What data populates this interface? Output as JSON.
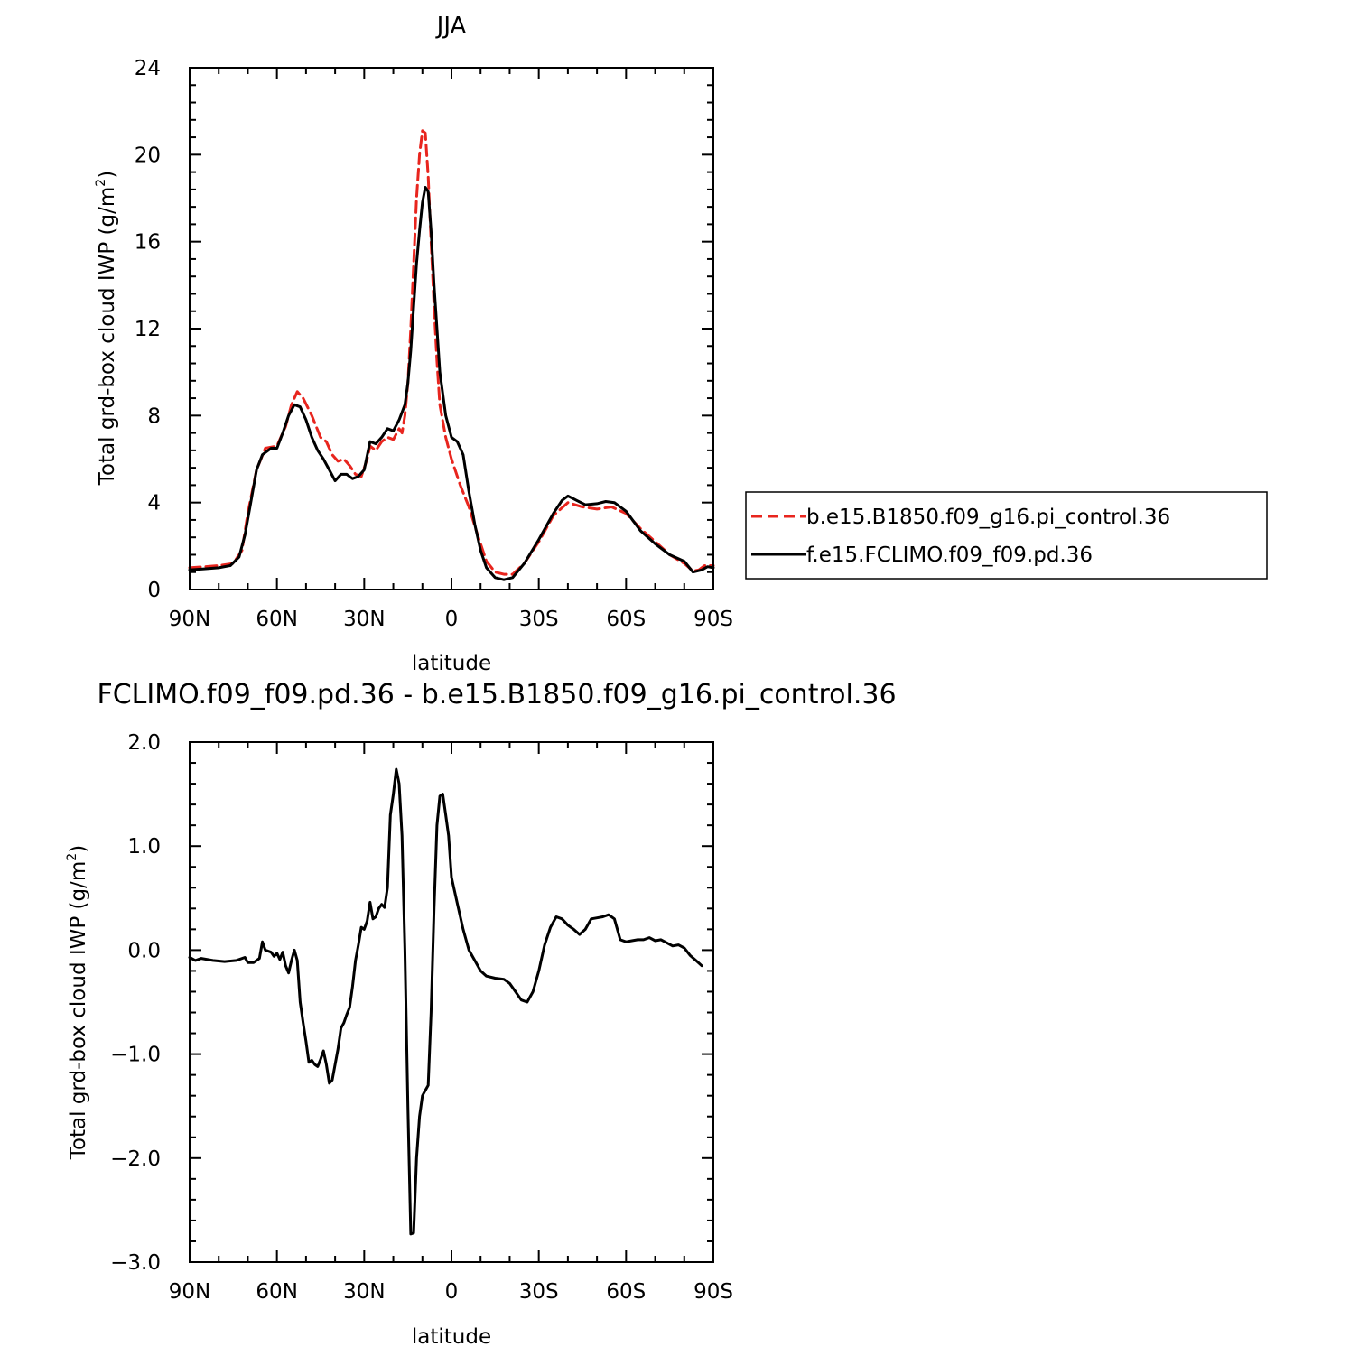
{
  "chart_data": [
    {
      "type": "line",
      "title": "JJA",
      "xlabel": "latitude",
      "ylabel_main": "Total grd-box cloud IWP (g/m",
      "ylabel_sup": "2",
      "ylabel_close": ")",
      "xlim": [
        90,
        -90
      ],
      "ylim": [
        0,
        24
      ],
      "x_ticks": [
        90,
        60,
        30,
        0,
        -30,
        -60,
        -90
      ],
      "x_tick_labels": [
        "90N",
        "60N",
        "30N",
        "0",
        "30S",
        "60S",
        "90S"
      ],
      "y_ticks": [
        0,
        4,
        8,
        12,
        16,
        20,
        24
      ],
      "y_tick_labels": [
        "0",
        "4",
        "8",
        "12",
        "16",
        "20",
        "24"
      ],
      "legend_position": "right",
      "series": [
        {
          "name": "b.e15.B1850.f09_g16.pi_control.36",
          "color": "#e8251e",
          "dash": "dashed",
          "points": [
            [
              90,
              1.0
            ],
            [
              85,
              1.05
            ],
            [
              80,
              1.1
            ],
            [
              75,
              1.2
            ],
            [
              72,
              1.8
            ],
            [
              70,
              3.5
            ],
            [
              67,
              5.5
            ],
            [
              64,
              6.5
            ],
            [
              60,
              6.6
            ],
            [
              57,
              7.5
            ],
            [
              55,
              8.5
            ],
            [
              53,
              9.1
            ],
            [
              51,
              8.8
            ],
            [
              48,
              8.0
            ],
            [
              45,
              7.0
            ],
            [
              43,
              6.8
            ],
            [
              41,
              6.2
            ],
            [
              39,
              5.9
            ],
            [
              37,
              6.0
            ],
            [
              35,
              5.7
            ],
            [
              33,
              5.3
            ],
            [
              31,
              5.2
            ],
            [
              29,
              6.0
            ],
            [
              28,
              6.6
            ],
            [
              26,
              6.4
            ],
            [
              24,
              6.8
            ],
            [
              22,
              7.0
            ],
            [
              20,
              6.9
            ],
            [
              18,
              7.4
            ],
            [
              17,
              7.2
            ],
            [
              16,
              8.0
            ],
            [
              15,
              9.5
            ],
            [
              14,
              12.0
            ],
            [
              13,
              15.0
            ],
            [
              12,
              18.0
            ],
            [
              11,
              20.0
            ],
            [
              10,
              21.1
            ],
            [
              9,
              21.0
            ],
            [
              8,
              19.0
            ],
            [
              7,
              16.0
            ],
            [
              6,
              13.0
            ],
            [
              5,
              10.5
            ],
            [
              4,
              8.5
            ],
            [
              2,
              7.0
            ],
            [
              0,
              6.0
            ],
            [
              -3,
              4.8
            ],
            [
              -6,
              3.8
            ],
            [
              -9,
              2.5
            ],
            [
              -12,
              1.3
            ],
            [
              -15,
              0.8
            ],
            [
              -18,
              0.7
            ],
            [
              -21,
              0.7
            ],
            [
              -25,
              1.2
            ],
            [
              -30,
              2.2
            ],
            [
              -35,
              3.4
            ],
            [
              -40,
              4.0
            ],
            [
              -45,
              3.8
            ],
            [
              -50,
              3.7
            ],
            [
              -55,
              3.8
            ],
            [
              -60,
              3.5
            ],
            [
              -65,
              2.8
            ],
            [
              -70,
              2.2
            ],
            [
              -75,
              1.6
            ],
            [
              -80,
              1.2
            ],
            [
              -83,
              0.85
            ],
            [
              -85,
              0.9
            ],
            [
              -87,
              1.1
            ],
            [
              -90,
              1.1
            ]
          ]
        },
        {
          "name": "f.e15.FCLIMO.f09_f09.pd.36",
          "color": "#000000",
          "dash": "solid",
          "points": [
            [
              90,
              0.9
            ],
            [
              85,
              0.95
            ],
            [
              80,
              1.0
            ],
            [
              76,
              1.1
            ],
            [
              73,
              1.5
            ],
            [
              71,
              2.5
            ],
            [
              69,
              4.0
            ],
            [
              67,
              5.5
            ],
            [
              65,
              6.2
            ],
            [
              62,
              6.5
            ],
            [
              60,
              6.5
            ],
            [
              58,
              7.2
            ],
            [
              56,
              8.0
            ],
            [
              54,
              8.5
            ],
            [
              52,
              8.4
            ],
            [
              50,
              7.8
            ],
            [
              48,
              7.0
            ],
            [
              46,
              6.4
            ],
            [
              44,
              6.0
            ],
            [
              42,
              5.5
            ],
            [
              40,
              5.0
            ],
            [
              38,
              5.3
            ],
            [
              36,
              5.3
            ],
            [
              34,
              5.1
            ],
            [
              32,
              5.2
            ],
            [
              30,
              5.5
            ],
            [
              28,
              6.8
            ],
            [
              26,
              6.7
            ],
            [
              24,
              7.0
            ],
            [
              22,
              7.4
            ],
            [
              20,
              7.3
            ],
            [
              18,
              7.8
            ],
            [
              16,
              8.5
            ],
            [
              15,
              9.5
            ],
            [
              14,
              11.0
            ],
            [
              13,
              13.0
            ],
            [
              12,
              15.0
            ],
            [
              11,
              16.5
            ],
            [
              10,
              17.8
            ],
            [
              9,
              18.5
            ],
            [
              8,
              18.3
            ],
            [
              7,
              16.5
            ],
            [
              6,
              14.0
            ],
            [
              5,
              12.0
            ],
            [
              4,
              10.0
            ],
            [
              2,
              8.0
            ],
            [
              0,
              7.0
            ],
            [
              -2,
              6.8
            ],
            [
              -4,
              6.2
            ],
            [
              -6,
              4.5
            ],
            [
              -8,
              3.0
            ],
            [
              -10,
              1.8
            ],
            [
              -12,
              1.0
            ],
            [
              -15,
              0.55
            ],
            [
              -18,
              0.45
            ],
            [
              -21,
              0.55
            ],
            [
              -25,
              1.2
            ],
            [
              -30,
              2.3
            ],
            [
              -35,
              3.5
            ],
            [
              -38,
              4.1
            ],
            [
              -40,
              4.3
            ],
            [
              -43,
              4.1
            ],
            [
              -46,
              3.9
            ],
            [
              -50,
              3.95
            ],
            [
              -53,
              4.05
            ],
            [
              -56,
              4.0
            ],
            [
              -60,
              3.6
            ],
            [
              -65,
              2.7
            ],
            [
              -70,
              2.1
            ],
            [
              -75,
              1.6
            ],
            [
              -80,
              1.3
            ],
            [
              -83,
              0.8
            ],
            [
              -86,
              0.9
            ],
            [
              -88,
              1.05
            ],
            [
              -90,
              1.0
            ]
          ]
        }
      ]
    },
    {
      "type": "line",
      "title": "FCLIMO.f09_f09.pd.36 - b.e15.B1850.f09_g16.pi_control.36",
      "xlabel": "latitude",
      "ylabel_main": "Total grd-box cloud IWP (g/m",
      "ylabel_sup": "2",
      "ylabel_close": ")",
      "xlim": [
        90,
        -90
      ],
      "ylim": [
        -3.0,
        2.0
      ],
      "x_ticks": [
        90,
        60,
        30,
        0,
        -30,
        -60,
        -90
      ],
      "x_tick_labels": [
        "90N",
        "60N",
        "30N",
        "0",
        "30S",
        "60S",
        "90S"
      ],
      "y_ticks": [
        -3.0,
        -2.0,
        -1.0,
        0.0,
        1.0,
        2.0
      ],
      "y_tick_labels": [
        "−3.0",
        "−2.0",
        "−1.0",
        "0.0",
        "1.0",
        "2.0"
      ],
      "series": [
        {
          "color": "#000000",
          "dash": "solid",
          "points": [
            [
              90,
              -0.07
            ],
            [
              88,
              -0.1
            ],
            [
              86,
              -0.08
            ],
            [
              82,
              -0.1
            ],
            [
              78,
              -0.11
            ],
            [
              74,
              -0.1
            ],
            [
              71,
              -0.07
            ],
            [
              70,
              -0.12
            ],
            [
              68,
              -0.12
            ],
            [
              67,
              -0.1
            ],
            [
              66,
              -0.08
            ],
            [
              65,
              0.08
            ],
            [
              64,
              0.0
            ],
            [
              62,
              -0.02
            ],
            [
              61,
              -0.06
            ],
            [
              60,
              -0.03
            ],
            [
              59,
              -0.09
            ],
            [
              58,
              -0.02
            ],
            [
              57,
              -0.15
            ],
            [
              56,
              -0.22
            ],
            [
              55,
              -0.1
            ],
            [
              54,
              0.0
            ],
            [
              53,
              -0.1
            ],
            [
              52,
              -0.5
            ],
            [
              51,
              -0.7
            ],
            [
              50,
              -0.88
            ],
            [
              49,
              -1.08
            ],
            [
              48,
              -1.06
            ],
            [
              47,
              -1.1
            ],
            [
              46,
              -1.12
            ],
            [
              45,
              -1.05
            ],
            [
              44,
              -0.97
            ],
            [
              43,
              -1.1
            ],
            [
              42,
              -1.28
            ],
            [
              41,
              -1.25
            ],
            [
              40,
              -1.1
            ],
            [
              39,
              -0.95
            ],
            [
              38,
              -0.75
            ],
            [
              37,
              -0.7
            ],
            [
              36,
              -0.62
            ],
            [
              35,
              -0.55
            ],
            [
              34,
              -0.35
            ],
            [
              33,
              -0.1
            ],
            [
              32,
              0.05
            ],
            [
              31,
              0.22
            ],
            [
              30,
              0.2
            ],
            [
              29,
              0.28
            ],
            [
              28,
              0.46
            ],
            [
              27,
              0.3
            ],
            [
              26,
              0.32
            ],
            [
              25,
              0.4
            ],
            [
              24,
              0.44
            ],
            [
              23,
              0.41
            ],
            [
              22,
              0.6
            ],
            [
              21,
              1.3
            ],
            [
              20,
              1.5
            ],
            [
              19,
              1.74
            ],
            [
              18,
              1.6
            ],
            [
              17,
              1.1
            ],
            [
              16,
              0.0
            ],
            [
              15,
              -1.5
            ],
            [
              14,
              -2.73
            ],
            [
              13,
              -2.72
            ],
            [
              12,
              -2.0
            ],
            [
              11,
              -1.6
            ],
            [
              10,
              -1.4
            ],
            [
              9,
              -1.35
            ],
            [
              8,
              -1.3
            ],
            [
              7,
              -0.6
            ],
            [
              6,
              0.4
            ],
            [
              5,
              1.2
            ],
            [
              4,
              1.48
            ],
            [
              3,
              1.5
            ],
            [
              2,
              1.3
            ],
            [
              1,
              1.1
            ],
            [
              0,
              0.7
            ],
            [
              -2,
              0.45
            ],
            [
              -4,
              0.2
            ],
            [
              -6,
              0.0
            ],
            [
              -8,
              -0.1
            ],
            [
              -10,
              -0.2
            ],
            [
              -12,
              -0.25
            ],
            [
              -15,
              -0.27
            ],
            [
              -18,
              -0.28
            ],
            [
              -20,
              -0.32
            ],
            [
              -22,
              -0.4
            ],
            [
              -24,
              -0.48
            ],
            [
              -26,
              -0.5
            ],
            [
              -28,
              -0.4
            ],
            [
              -30,
              -0.2
            ],
            [
              -32,
              0.05
            ],
            [
              -34,
              0.22
            ],
            [
              -36,
              0.32
            ],
            [
              -38,
              0.3
            ],
            [
              -40,
              0.24
            ],
            [
              -42,
              0.2
            ],
            [
              -44,
              0.15
            ],
            [
              -46,
              0.2
            ],
            [
              -48,
              0.3
            ],
            [
              -50,
              0.31
            ],
            [
              -52,
              0.32
            ],
            [
              -54,
              0.34
            ],
            [
              -56,
              0.3
            ],
            [
              -58,
              0.1
            ],
            [
              -60,
              0.08
            ],
            [
              -62,
              0.09
            ],
            [
              -64,
              0.1
            ],
            [
              -66,
              0.1
            ],
            [
              -68,
              0.12
            ],
            [
              -70,
              0.09
            ],
            [
              -72,
              0.1
            ],
            [
              -74,
              0.07
            ],
            [
              -76,
              0.04
            ],
            [
              -78,
              0.05
            ],
            [
              -80,
              0.02
            ],
            [
              -82,
              -0.05
            ],
            [
              -84,
              -0.1
            ],
            [
              -86,
              -0.15
            ]
          ]
        }
      ]
    }
  ]
}
